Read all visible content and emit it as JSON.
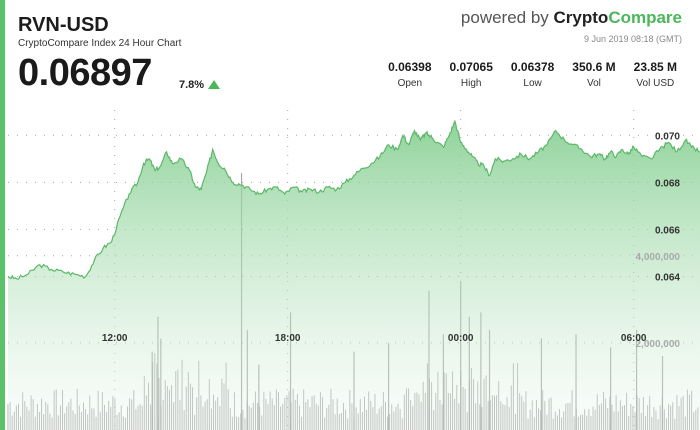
{
  "header": {
    "pair": "RVN-USD",
    "subtitle": "CryptoCompare Index 24 Hour Chart",
    "price": "0.06897",
    "change": "7.8%"
  },
  "brand": {
    "powered_by": "powered by",
    "name_part1": "Crypto",
    "name_part2": "Compare",
    "timestamp": "9 Jun 2019 08:18 (GMT)"
  },
  "stats": [
    {
      "value": "0.06398",
      "label": "Open"
    },
    {
      "value": "0.07065",
      "label": "High"
    },
    {
      "value": "0.06378",
      "label": "Low"
    },
    {
      "value": "350.6 M",
      "label": "Vol"
    },
    {
      "value": "23.85 M",
      "label": "Vol USD"
    }
  ],
  "colors": {
    "accent": "#5cc26a",
    "line": "#5cb868",
    "fill": "#8fd49a",
    "volume": "#9a9a9a"
  },
  "chart_data": {
    "type": "area",
    "title": "",
    "price_ticks": [
      0.07,
      0.068,
      0.066,
      0.064
    ],
    "price_tick_labels": [
      "0.070",
      "0.068",
      "0.066",
      "0.064"
    ],
    "price_range": [
      0.063,
      0.0715
    ],
    "volume_ticks": [
      4000000,
      2000000
    ],
    "volume_tick_labels": [
      "4,000,000",
      "2,000,000"
    ],
    "volume_range": [
      0,
      6200000
    ],
    "x_ticks": [
      12,
      18,
      24,
      30
    ],
    "x_tick_labels": [
      "12:00",
      "18:00",
      "00:00",
      "06:00"
    ],
    "x_range": [
      8.3,
      32.3
    ],
    "series": [
      {
        "x": [
          8.3,
          8.6,
          9.0,
          9.4,
          9.8,
          10.2,
          10.6,
          11.0,
          11.3,
          11.6,
          11.9,
          12.2,
          12.5,
          12.8,
          13.0,
          13.2,
          13.4,
          13.6,
          13.8,
          14.0,
          14.3,
          14.6,
          14.8,
          15.0,
          15.2,
          15.4,
          15.6,
          15.8,
          16.1,
          16.4,
          16.7,
          17.0,
          17.3,
          17.6,
          17.9,
          18.2,
          18.5,
          18.8,
          19.1,
          19.4,
          19.7,
          20.0,
          20.3,
          20.6,
          20.9,
          21.2,
          21.5,
          21.8,
          22.0,
          22.2,
          22.4,
          22.6,
          22.8,
          23.0,
          23.2,
          23.4,
          23.6,
          23.8,
          24.0,
          24.2,
          24.4,
          24.6,
          24.8,
          25.0,
          25.2,
          25.5,
          25.8,
          26.1,
          26.4,
          26.7,
          27.0,
          27.3,
          27.6,
          27.9,
          28.2,
          28.5,
          28.8,
          29.0,
          29.2,
          29.4,
          29.6,
          29.8,
          30.0,
          30.3,
          30.6,
          30.9,
          31.2,
          31.5,
          31.8,
          32.0,
          32.3
        ],
        "y": [
          0.064,
          0.0639,
          0.0641,
          0.0645,
          0.0643,
          0.0642,
          0.0641,
          0.064,
          0.0647,
          0.0652,
          0.0655,
          0.0666,
          0.0675,
          0.068,
          0.0688,
          0.069,
          0.0685,
          0.0687,
          0.0693,
          0.0688,
          0.069,
          0.0685,
          0.0678,
          0.0677,
          0.0685,
          0.0694,
          0.0688,
          0.0686,
          0.068,
          0.0679,
          0.0677,
          0.0675,
          0.0677,
          0.0678,
          0.0675,
          0.0678,
          0.0676,
          0.0677,
          0.0676,
          0.0678,
          0.0677,
          0.068,
          0.0683,
          0.0686,
          0.0688,
          0.0691,
          0.0696,
          0.0694,
          0.07,
          0.0696,
          0.0702,
          0.0698,
          0.0701,
          0.0699,
          0.0697,
          0.0695,
          0.07,
          0.0706,
          0.0697,
          0.0694,
          0.0691,
          0.0688,
          0.0687,
          0.0683,
          0.069,
          0.0689,
          0.069,
          0.0692,
          0.069,
          0.0693,
          0.0696,
          0.0702,
          0.0698,
          0.0696,
          0.0694,
          0.0691,
          0.0692,
          0.069,
          0.0693,
          0.0691,
          0.0694,
          0.0692,
          0.0695,
          0.0691,
          0.069,
          0.0694,
          0.0697,
          0.0693,
          0.0698,
          0.0695,
          0.0693
        ]
      }
    ],
    "volumes": {
      "x_start": 8.3,
      "x_end": 32.3,
      "spikes": [
        {
          "x": 13.3,
          "v": 1800000
        },
        {
          "x": 13.5,
          "v": 2600000
        },
        {
          "x": 13.6,
          "v": 2100000
        },
        {
          "x": 16.4,
          "v": 5900000
        },
        {
          "x": 16.6,
          "v": 2300000
        },
        {
          "x": 17.0,
          "v": 1500000
        },
        {
          "x": 18.1,
          "v": 2700000
        },
        {
          "x": 20.3,
          "v": 1800000
        },
        {
          "x": 21.5,
          "v": 2000000
        },
        {
          "x": 22.9,
          "v": 3200000
        },
        {
          "x": 23.4,
          "v": 2200000
        },
        {
          "x": 24.0,
          "v": 3400000
        },
        {
          "x": 24.3,
          "v": 2600000
        },
        {
          "x": 24.7,
          "v": 2700000
        },
        {
          "x": 25.0,
          "v": 2300000
        },
        {
          "x": 26.8,
          "v": 2100000
        },
        {
          "x": 28.0,
          "v": 2200000
        },
        {
          "x": 29.2,
          "v": 1900000
        },
        {
          "x": 30.1,
          "v": 2300000
        },
        {
          "x": 31.0,
          "v": 1700000
        }
      ]
    }
  }
}
